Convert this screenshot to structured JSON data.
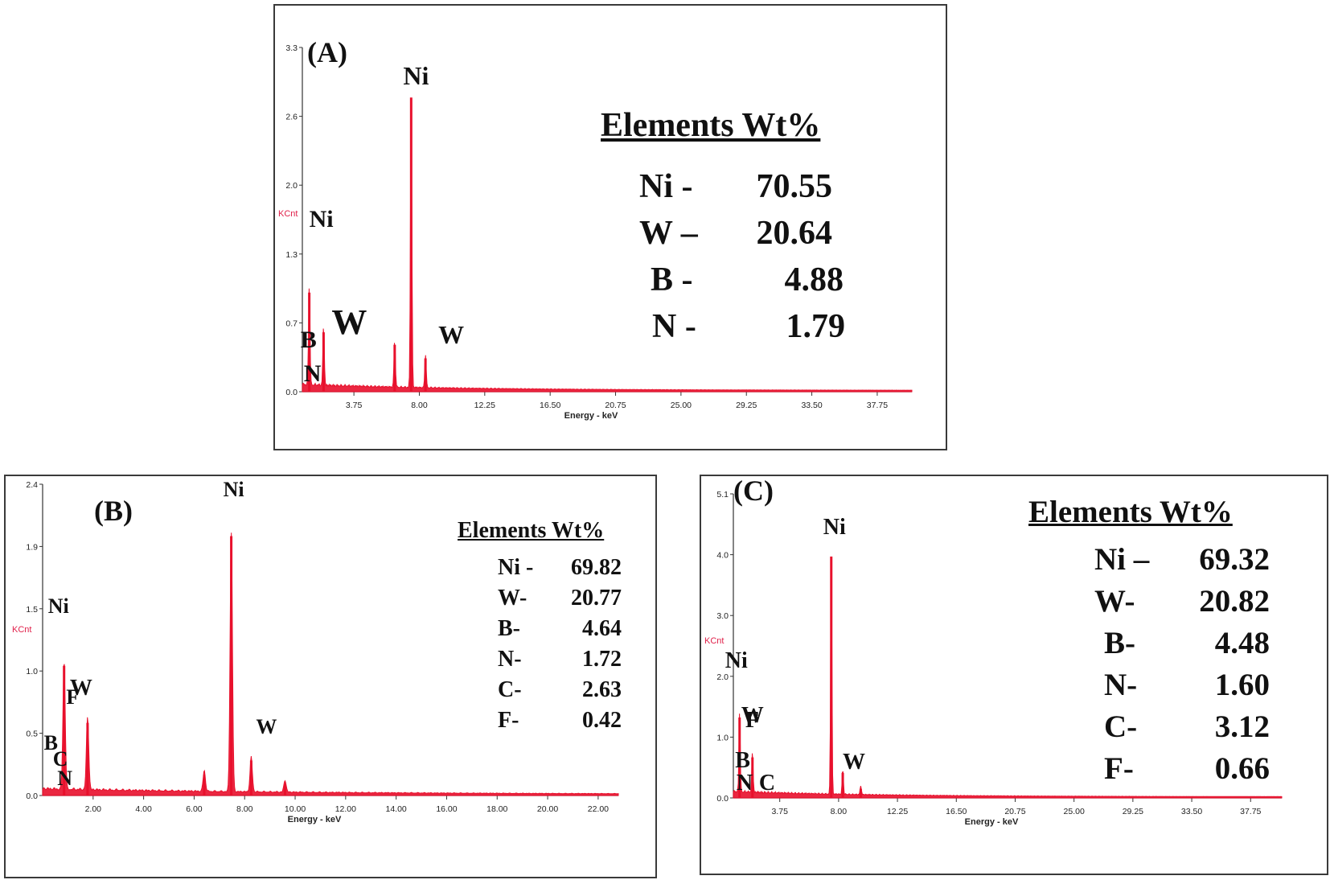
{
  "chart_data": [
    {
      "type": "line",
      "title": "(A)",
      "xlabel": "Energy - keV",
      "ylabel": "KCnt",
      "xlim": [
        0.4,
        40.0
      ],
      "ylim": [
        0,
        3.3
      ],
      "x_ticks": [
        "3.75",
        "8.00",
        "12.25",
        "16.50",
        "20.75",
        "25.00",
        "29.25",
        "33.50",
        "37.75"
      ],
      "y_ticks": [
        "0.0",
        "0.7",
        "1.3",
        "2.0",
        "2.6",
        "3.3"
      ],
      "peaks": [
        {
          "x": 0.85,
          "y": 0.95
        },
        {
          "x": 1.78,
          "y": 0.57
        },
        {
          "x": 6.4,
          "y": 0.45
        },
        {
          "x": 7.47,
          "y": 2.82
        },
        {
          "x": 8.4,
          "y": 0.32
        }
      ],
      "peak_labels": [
        {
          "text": "Ni",
          "x": 7.47
        },
        {
          "text": "Ni",
          "x": 0.85
        },
        {
          "text": "W",
          "x": 1.78
        },
        {
          "text": "W",
          "x": 8.4
        },
        {
          "text": "B",
          "x": 0.18
        },
        {
          "text": "N",
          "x": 0.39
        }
      ],
      "composition_title": "Elements Wt%",
      "composition": [
        {
          "element": "Ni -",
          "value": "70.55"
        },
        {
          "element": "W –",
          "value": "20.64"
        },
        {
          "element": "B -",
          "value": "4.88"
        },
        {
          "element": "N -",
          "value": "1.79"
        }
      ]
    },
    {
      "type": "line",
      "title": "(B)",
      "xlabel": "Energy - keV",
      "ylabel": "KCnt",
      "xlim": [
        0.0,
        22.8
      ],
      "ylim": [
        0,
        2.4
      ],
      "x_ticks": [
        "2.00",
        "4.00",
        "6.00",
        "8.00",
        "10.00",
        "12.00",
        "14.00",
        "16.00",
        "18.00",
        "20.00",
        "22.00"
      ],
      "y_ticks": [
        "0.0",
        "0.5",
        "1.0",
        "1.5",
        "1.9",
        "2.4"
      ],
      "peaks": [
        {
          "x": 0.85,
          "y": 1.0
        },
        {
          "x": 1.78,
          "y": 0.56
        },
        {
          "x": 6.4,
          "y": 0.16
        },
        {
          "x": 7.47,
          "y": 2.0
        },
        {
          "x": 8.26,
          "y": 0.27
        },
        {
          "x": 9.6,
          "y": 0.09
        }
      ],
      "peak_labels": [
        {
          "text": "Ni",
          "x": 7.47
        },
        {
          "text": "Ni",
          "x": 0.85
        },
        {
          "text": "W",
          "x": 1.78
        },
        {
          "text": "W",
          "x": 8.26
        },
        {
          "text": "F",
          "x": 0.68
        },
        {
          "text": "B",
          "x": 0.18
        },
        {
          "text": "C",
          "x": 0.28
        },
        {
          "text": "N",
          "x": 0.39
        }
      ],
      "composition_title": "Elements Wt%",
      "composition": [
        {
          "element": "Ni -",
          "value": "69.82"
        },
        {
          "element": "W-",
          "value": "20.77"
        },
        {
          "element": "B-",
          "value": "4.64"
        },
        {
          "element": "N-",
          "value": "1.72"
        },
        {
          "element": "C-",
          "value": "2.63"
        },
        {
          "element": "F-",
          "value": "0.42"
        }
      ]
    },
    {
      "type": "line",
      "title": "(C)",
      "xlabel": "Energy - keV",
      "ylabel": "KCnt",
      "xlim": [
        0.4,
        40.0
      ],
      "ylim": [
        0,
        5.1
      ],
      "x_ticks": [
        "3.75",
        "8.00",
        "12.25",
        "16.50",
        "20.75",
        "25.00",
        "29.25",
        "33.50",
        "37.75"
      ],
      "y_ticks": [
        "0.0",
        "1.0",
        "2.0",
        "3.0",
        "4.0",
        "5.1"
      ],
      "peaks": [
        {
          "x": 0.85,
          "y": 1.35
        },
        {
          "x": 1.78,
          "y": 0.68
        },
        {
          "x": 7.47,
          "y": 4.05
        },
        {
          "x": 8.3,
          "y": 0.42
        },
        {
          "x": 9.6,
          "y": 0.15
        }
      ],
      "peak_labels": [
        {
          "text": "Ni",
          "x": 7.47
        },
        {
          "text": "Ni",
          "x": 0.85
        },
        {
          "text": "W",
          "x": 1.78
        },
        {
          "text": "W",
          "x": 8.3
        },
        {
          "text": "F",
          "x": 0.68
        },
        {
          "text": "B",
          "x": 0.18
        },
        {
          "text": "N",
          "x": 0.39
        },
        {
          "text": "C",
          "x": 0.28
        }
      ],
      "composition_title": "Elements Wt%",
      "composition": [
        {
          "element": "Ni –",
          "value": "69.32"
        },
        {
          "element": "W-",
          "value": "20.82"
        },
        {
          "element": "B-",
          "value": "4.48"
        },
        {
          "element": "N-",
          "value": "1.60"
        },
        {
          "element": "C-",
          "value": "3.12"
        },
        {
          "element": "F-",
          "value": "0.66"
        }
      ]
    }
  ],
  "colors": {
    "spectrum": "#e8102c",
    "spectrum_highlight": "#ff6f86",
    "ylabel": "#e0204a"
  }
}
